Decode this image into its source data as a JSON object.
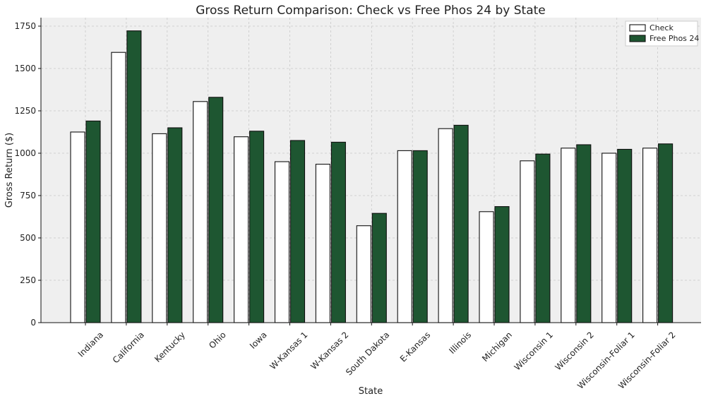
{
  "chart_data": {
    "type": "bar",
    "title": "Gross Return Comparison: Check vs Free Phos 24 by State",
    "xlabel": "State",
    "ylabel": "Gross Return ($)",
    "ylim": [
      0,
      1800
    ],
    "yticks": [
      0,
      250,
      500,
      750,
      1000,
      1250,
      1500,
      1750
    ],
    "grid": true,
    "legend_position": "top-right",
    "categories": [
      "Indiana",
      "California",
      "Kentucky",
      "Ohio",
      "Iowa",
      "W-Kansas 1",
      "W-Kansas 2",
      "South Dakota",
      "E-Kansas",
      "Illinois",
      "Michigan",
      "Wisconsin 1",
      "Wisconsin 2",
      "Wisconsin-Foliar 1",
      "Wisconsin-Foliar 2"
    ],
    "series": [
      {
        "name": "Check",
        "color": "#ffffff",
        "values": [
          1125,
          1595,
          1115,
          1305,
          1097,
          950,
          935,
          572,
          1015,
          1145,
          655,
          955,
          1030,
          1000,
          1030
        ]
      },
      {
        "name": "Free Phos 24",
        "color": "#1e5631",
        "values": [
          1190,
          1722,
          1150,
          1330,
          1130,
          1075,
          1065,
          645,
          1015,
          1165,
          685,
          995,
          1050,
          1023,
          1055
        ]
      }
    ]
  }
}
